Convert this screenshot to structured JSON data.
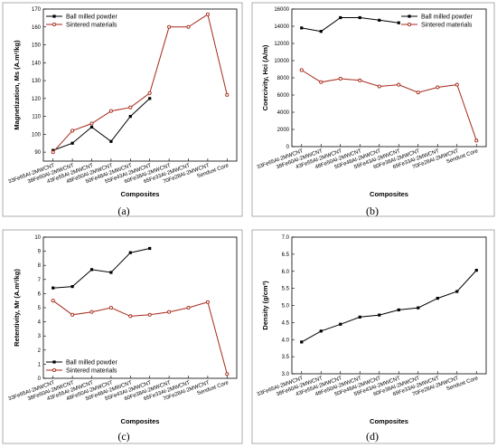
{
  "colors": {
    "ball": "#000000",
    "sintered": "#a52a1a"
  },
  "categories_abc": [
    "33Fe65Al-2MWCNT",
    "38Fe60Al-2MWCNT",
    "43Fe55Al-2MWCNT",
    "48Fe50Al-2MWCNT",
    "50Fe48Al-2MWCNT",
    "55Fe43Al-2MWCNT",
    "60Fe38Al-2MWCNT",
    "65Fe33Al-2MWCNT",
    "70Fe28Al-2MWCNT",
    "Sendust Core"
  ],
  "chart_data": [
    {
      "id": "a",
      "type": "line",
      "panel_label": "(a)",
      "xlabel": "Composites",
      "ylabel": "Magnetization, Ms (A.m²/kg)",
      "categories": [
        "33Fe65Al-2MWCNT",
        "38Fe60Al-2MWCNT",
        "43Fe55Al-2MWCNT",
        "48Fe50Al-2MWCNT",
        "50Fe48Al-2MWCNT",
        "55Fe43Al-2MWCNT",
        "60Fe38Al-2MWCNT",
        "65Fe33Al-2MWCNT",
        "70Fe28Al-2MWCNT",
        "Sendust Core"
      ],
      "ylim": [
        85,
        170
      ],
      "yticks": [
        90,
        100,
        110,
        120,
        130,
        140,
        150,
        160,
        170
      ],
      "legend": "top-left",
      "series": [
        {
          "name": "Ball milled powder",
          "marker": "square",
          "values": [
            91,
            95,
            104,
            96,
            110,
            120,
            null,
            null,
            null,
            null
          ]
        },
        {
          "name": "Sintered materials",
          "marker": "circle",
          "values": [
            90,
            102,
            106,
            113,
            115,
            123,
            160,
            160,
            167,
            122
          ]
        }
      ]
    },
    {
      "id": "b",
      "type": "line",
      "panel_label": "(b)",
      "xlabel": "Composites",
      "ylabel": "Coercivity, Hci (A/m)",
      "categories": [
        "33Fe65Al-2MWCNT",
        "38Fe60Al-2MWCNT",
        "43Fe55Al-2MWCNT",
        "48Fe50Al-2MWCNT",
        "50Fe48Al-2MWCNT",
        "55Fe43Al-2MWCNT",
        "60Fe38Al-2MWCNT",
        "65Fe33Al-2MWCNT",
        "70Fe28Al-2MWCNT",
        "Sendust Core"
      ],
      "ylim": [
        0,
        16000
      ],
      "yticks": [
        0,
        2000,
        4000,
        6000,
        8000,
        10000,
        12000,
        14000,
        16000
      ],
      "legend": "top-right",
      "series": [
        {
          "name": "Ball milled powder",
          "marker": "square",
          "values": [
            13800,
            13400,
            15000,
            15000,
            14700,
            14400,
            null,
            null,
            null,
            null
          ]
        },
        {
          "name": "Sintered materials",
          "marker": "circle",
          "values": [
            8900,
            7500,
            7900,
            7700,
            7000,
            7200,
            6300,
            6900,
            7200,
            700
          ]
        }
      ]
    },
    {
      "id": "c",
      "type": "line",
      "panel_label": "(c)",
      "xlabel": "Composites",
      "ylabel": "Retentivity, Mr (A.m²/kg)",
      "categories": [
        "33Fe65Al-2MWCNT",
        "38Fe60Al-2MWCNT",
        "43Fe55Al-2MWCNT",
        "48Fe50Al-2MWCNT",
        "50Fe48Al-2MWCNT",
        "55Fe43Al-2MWCNT",
        "60Fe38Al-2MWCNT",
        "65Fe33Al-2MWCNT",
        "70Fe28Al-2MWCNT",
        "Sendust Core"
      ],
      "ylim": [
        0,
        10
      ],
      "yticks": [
        0,
        1,
        2,
        3,
        4,
        5,
        6,
        7,
        8,
        9,
        10
      ],
      "legend": "bottom-left",
      "series": [
        {
          "name": "Ball milled powder",
          "marker": "square",
          "values": [
            6.4,
            6.5,
            7.7,
            7.5,
            8.9,
            9.2,
            null,
            null,
            null,
            null
          ]
        },
        {
          "name": "Sintered materials",
          "marker": "circle",
          "values": [
            5.5,
            4.5,
            4.7,
            5.0,
            4.4,
            4.5,
            4.7,
            5.0,
            5.4,
            0.3
          ]
        }
      ]
    },
    {
      "id": "d",
      "type": "line",
      "panel_label": "(d)",
      "xlabel": "Composites",
      "ylabel": "Density (g/cm³)",
      "categories": [
        "33Fe65Al-2MWCNT",
        "38Fe60Al-2MWCNT",
        "43Fe55Al-2MWCNT",
        "48Fe50Al-2MWCNT",
        "50Fe48Al-2MWCNT",
        "55Fe43Al-2MWCNT",
        "60Fe38Al-2MWCNT",
        "65Fe33Al-2MWCNT",
        "70Fe28Al-2MWCNT",
        "Sendust Core"
      ],
      "ylim": [
        3.0,
        7.0
      ],
      "yticks": [
        3.0,
        3.5,
        4.0,
        4.5,
        5.0,
        5.5,
        6.0,
        6.5,
        7.0
      ],
      "legend": "none",
      "series": [
        {
          "name": "",
          "marker": "square",
          "values": [
            3.93,
            4.25,
            4.45,
            4.66,
            4.72,
            4.87,
            4.93,
            5.21,
            5.41,
            6.03
          ]
        }
      ]
    }
  ]
}
